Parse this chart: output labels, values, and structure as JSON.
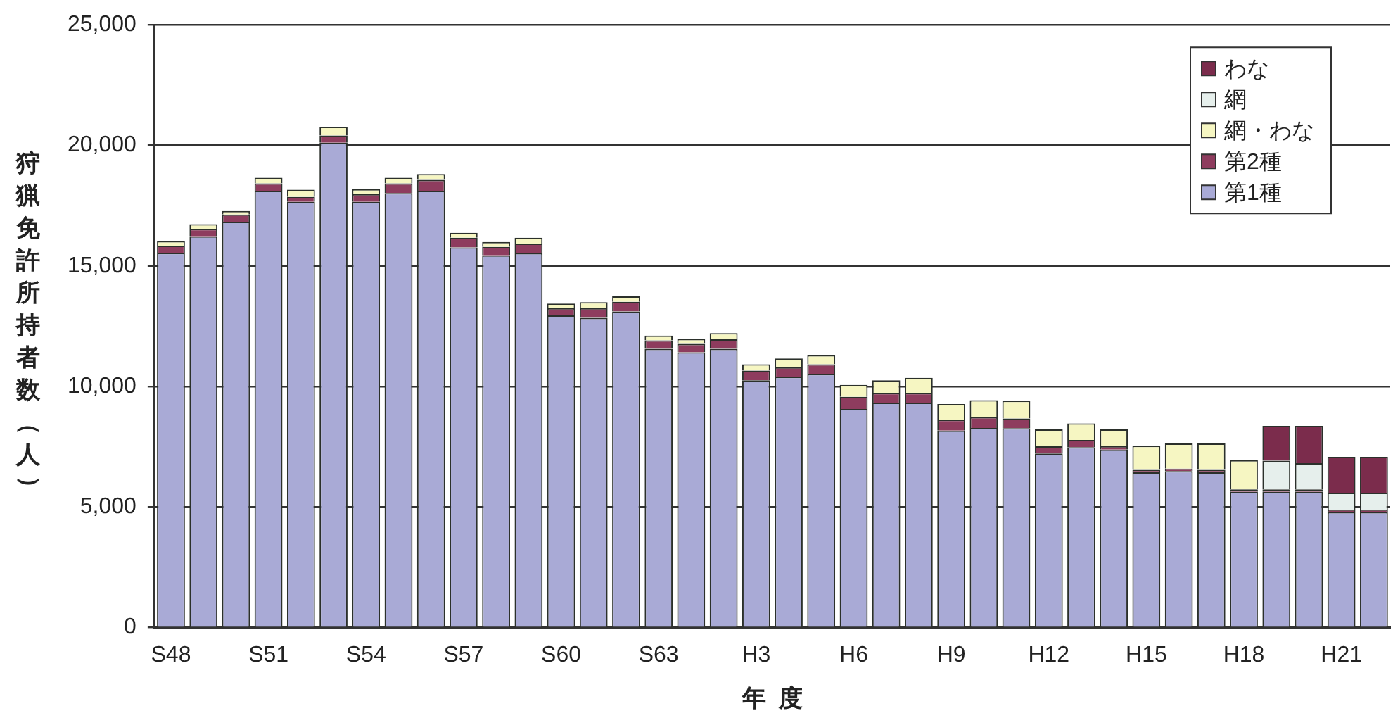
{
  "chart_data": {
    "type": "bar",
    "stacked": true,
    "xlabel": "年度",
    "ylabel": "狩猟免許所持者数（人）",
    "categories": [
      "S48",
      null,
      null,
      "S51",
      null,
      null,
      "S54",
      null,
      null,
      "S57",
      null,
      null,
      "S60",
      null,
      null,
      "S63",
      null,
      null,
      "H3",
      null,
      null,
      "H6",
      null,
      null,
      "H9",
      null,
      null,
      "H12",
      null,
      null,
      "H15",
      null,
      null,
      "H18",
      null,
      null,
      "H21",
      null
    ],
    "series": [
      {
        "name": "第1種",
        "color": "#a9aad6",
        "values": [
          15540,
          16230,
          16830,
          18120,
          17660,
          20110,
          17660,
          18020,
          18120,
          15770,
          15440,
          15530,
          12950,
          12850,
          13110,
          11560,
          11420,
          11560,
          10260,
          10400,
          10520,
          9070,
          9330,
          9330,
          8170,
          8280,
          8270,
          7220,
          7480,
          7380,
          6440,
          6490,
          6440,
          5630,
          5630,
          5630,
          4790,
          4790
        ]
      },
      {
        "name": "第2種",
        "color": "#8e3c5e",
        "values": [
          300,
          300,
          300,
          300,
          200,
          300,
          320,
          400,
          450,
          400,
          350,
          400,
          300,
          400,
          400,
          350,
          350,
          400,
          400,
          400,
          400,
          500,
          400,
          400,
          450,
          450,
          400,
          300,
          300,
          150,
          100,
          100,
          100,
          100,
          100,
          100,
          100,
          100
        ]
      },
      {
        "name": "網・わな",
        "color": "#f6f6c2",
        "values": [
          190,
          200,
          150,
          240,
          300,
          360,
          200,
          240,
          240,
          200,
          200,
          240,
          190,
          250,
          230,
          200,
          200,
          250,
          260,
          360,
          380,
          500,
          530,
          630,
          650,
          700,
          740,
          700,
          690,
          690,
          1000,
          1050,
          1100,
          1210,
          null,
          null,
          null,
          null
        ]
      },
      {
        "name": "網",
        "color": "#e6efec",
        "values": [
          null,
          null,
          null,
          null,
          null,
          null,
          null,
          null,
          null,
          null,
          null,
          null,
          null,
          null,
          null,
          null,
          null,
          null,
          null,
          null,
          null,
          null,
          null,
          null,
          null,
          null,
          null,
          null,
          null,
          null,
          null,
          null,
          null,
          null,
          1190,
          1090,
          700,
          700
        ]
      },
      {
        "name": "わな",
        "color": "#7b2c4c",
        "values": [
          null,
          null,
          null,
          null,
          null,
          null,
          null,
          null,
          null,
          null,
          null,
          null,
          null,
          null,
          null,
          null,
          null,
          null,
          null,
          null,
          null,
          null,
          null,
          null,
          null,
          null,
          null,
          null,
          null,
          null,
          null,
          null,
          null,
          null,
          1450,
          1550,
          1490,
          1490
        ]
      }
    ],
    "ylim": [
      0,
      25000
    ],
    "yticks": [
      {
        "value": 0,
        "label": "0"
      },
      {
        "value": 5000,
        "label": "5,000"
      },
      {
        "value": 10000,
        "label": "10,000"
      },
      {
        "value": 15000,
        "label": "15,000"
      },
      {
        "value": 20000,
        "label": "20,000"
      },
      {
        "value": 25000,
        "label": "25,000"
      }
    ],
    "grid": "y",
    "legend": "top right"
  }
}
